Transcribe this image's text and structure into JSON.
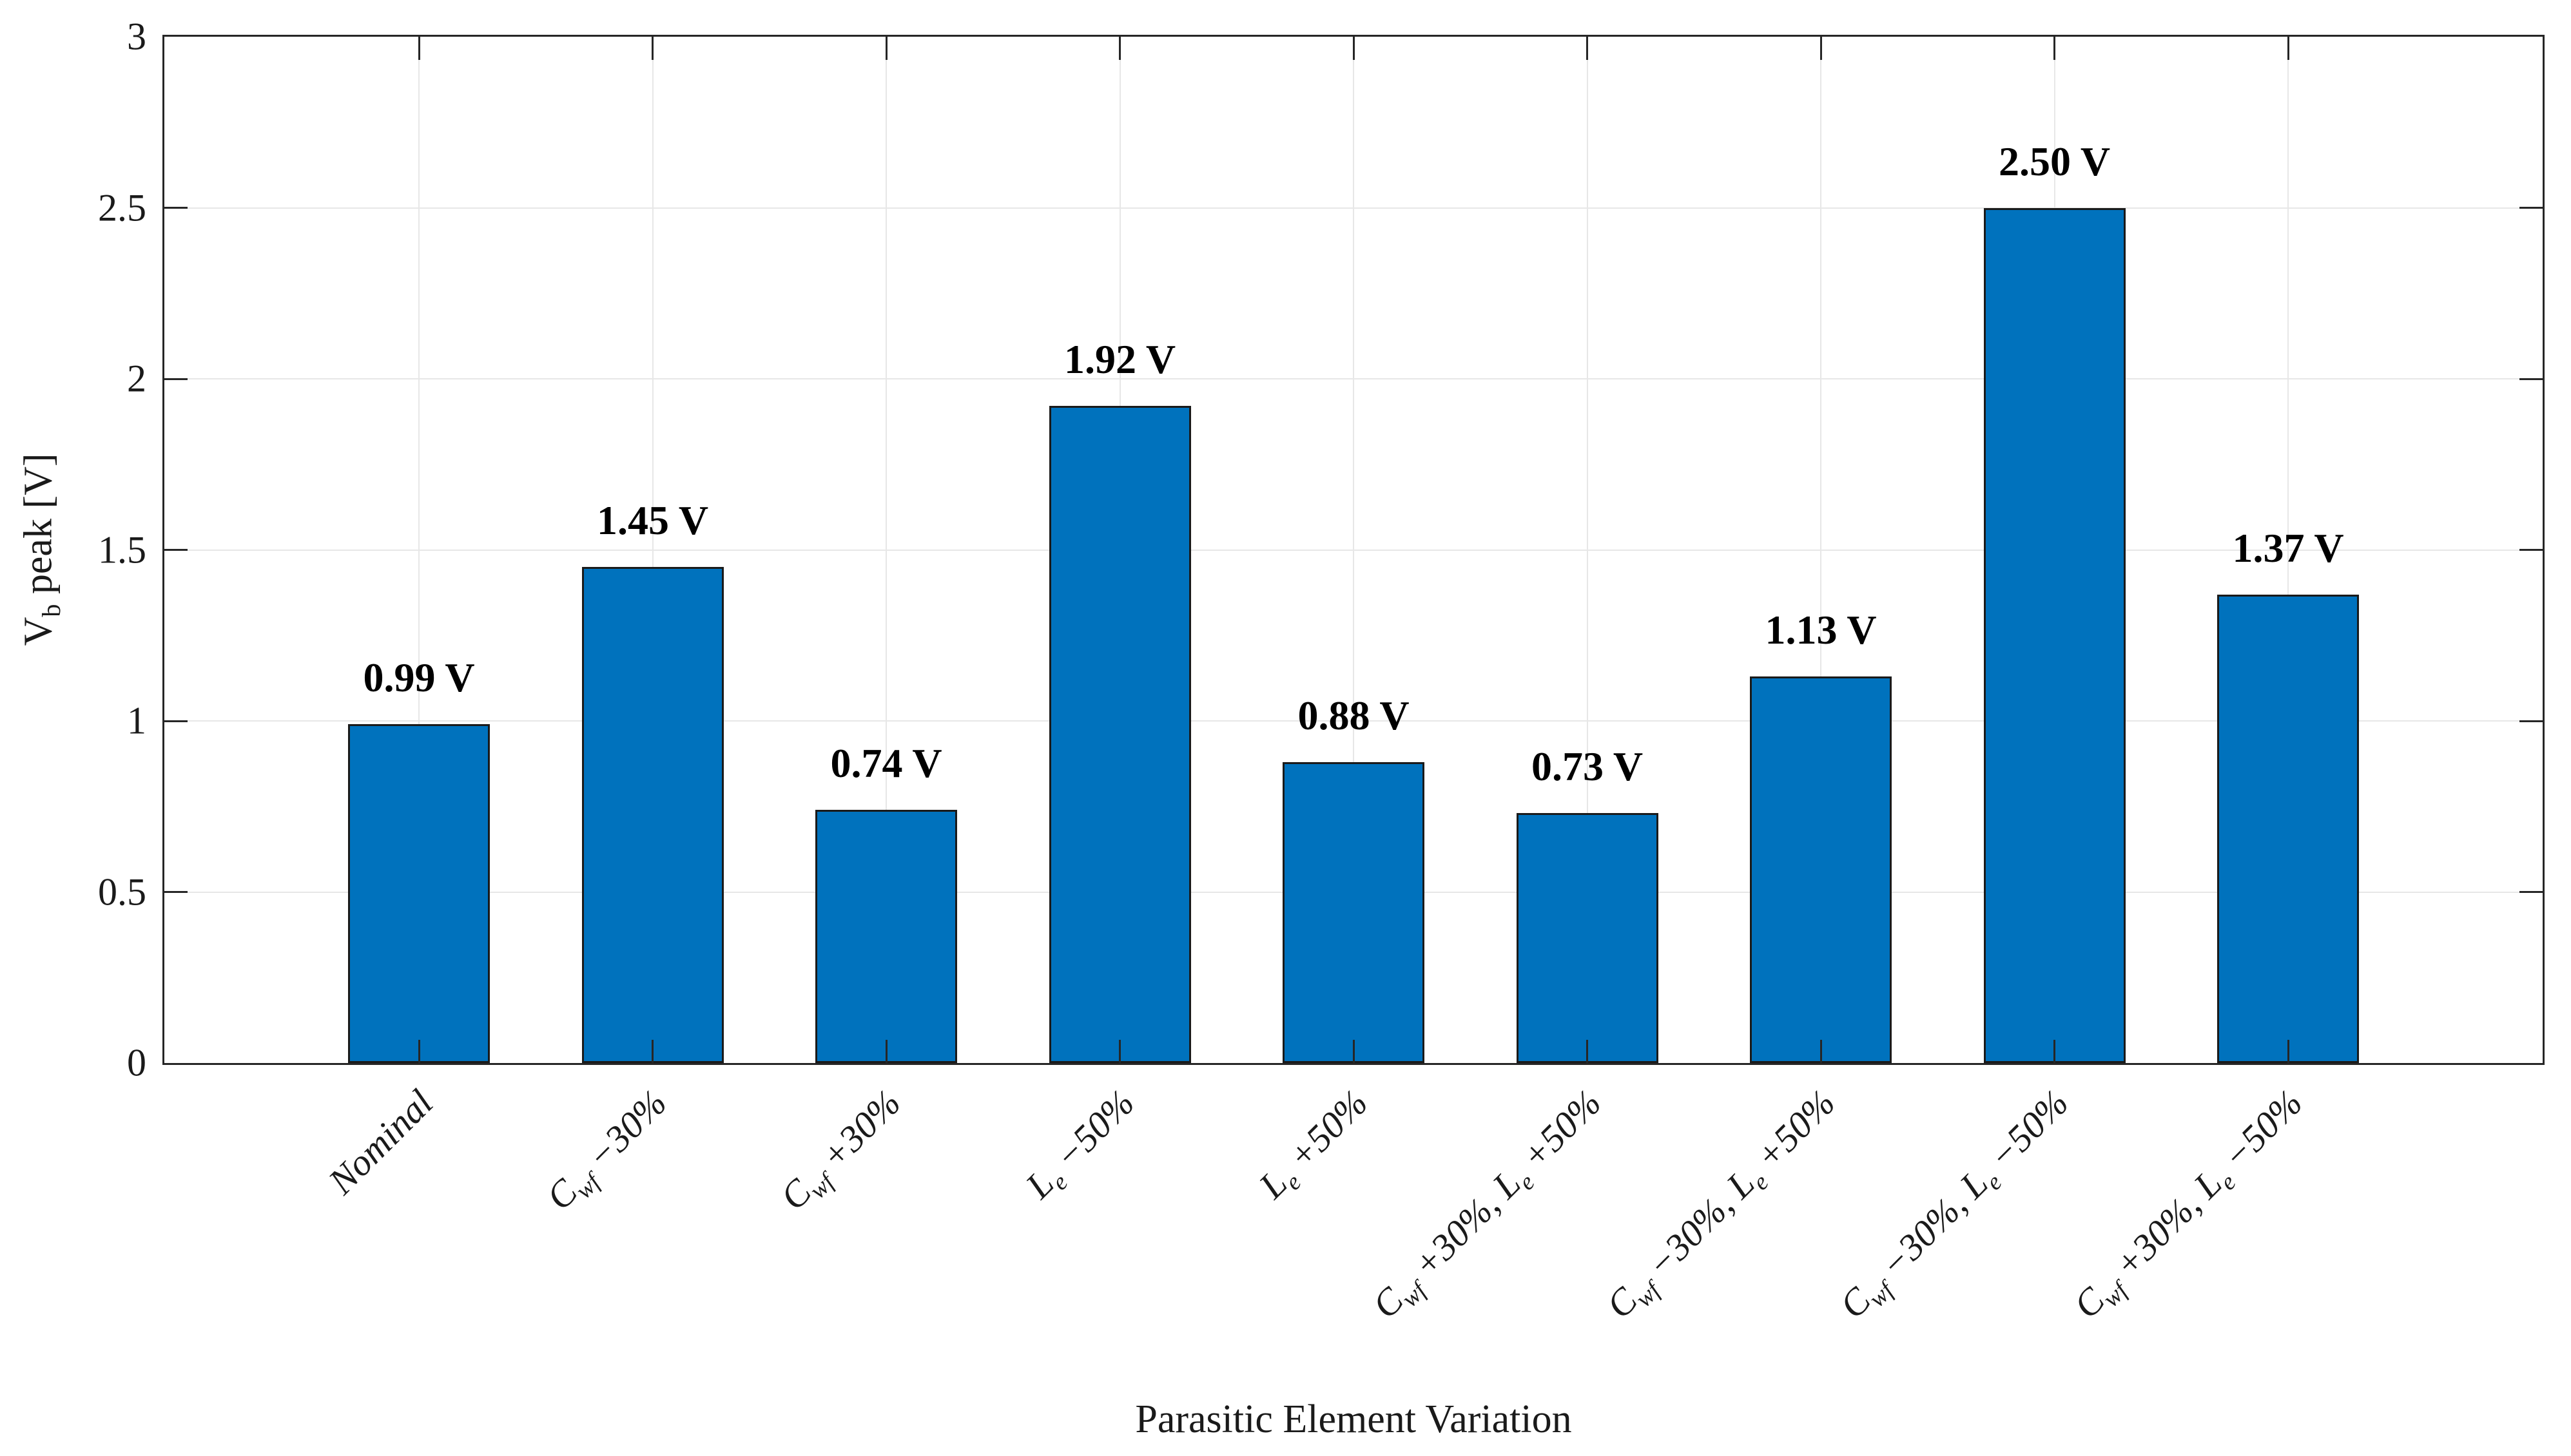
{
  "chart_data": {
    "type": "bar",
    "title": "",
    "xlabel": "Parasitic Element Variation",
    "ylabel": "V_b peak [V]",
    "ylabel_rich": [
      [
        "V",
        "b"
      ],
      [
        " peak [V]",
        ""
      ]
    ],
    "ylim": [
      0,
      3
    ],
    "ytick_values": [
      0,
      0.5,
      1,
      1.5,
      2,
      2.5,
      3
    ],
    "ytick_labels": [
      "0",
      "0.5",
      "1",
      "1.5",
      "2",
      "2.5",
      "3"
    ],
    "grid": true,
    "legend": null,
    "categories": [
      "Nominal",
      "Cwf −30%",
      "Cwf +30%",
      "Le −50%",
      "Le +50%",
      "Cwf +30%, Le +50%",
      "Cwf −30%, Le +50%",
      "Cwf −30%, Le −50%",
      "Cwf +30%, Le −50%"
    ],
    "categories_rich": [
      [
        [
          "Nominal",
          ""
        ]
      ],
      [
        [
          "C",
          "wf"
        ],
        [
          " −30%",
          ""
        ]
      ],
      [
        [
          "C",
          "wf"
        ],
        [
          " +30%",
          ""
        ]
      ],
      [
        [
          "L",
          "e"
        ],
        [
          " −50%",
          ""
        ]
      ],
      [
        [
          "L",
          "e"
        ],
        [
          " +50%",
          ""
        ]
      ],
      [
        [
          "C",
          "wf"
        ],
        [
          " +30%, L",
          "e"
        ],
        [
          " +50%",
          ""
        ]
      ],
      [
        [
          "C",
          "wf"
        ],
        [
          " −30%, L",
          "e"
        ],
        [
          " +50%",
          ""
        ]
      ],
      [
        [
          "C",
          "wf"
        ],
        [
          " −30%, L",
          "e"
        ],
        [
          " −50%",
          ""
        ]
      ],
      [
        [
          "C",
          "wf"
        ],
        [
          " +30%, L",
          "e"
        ],
        [
          " −50%",
          ""
        ]
      ]
    ],
    "values": [
      0.99,
      1.45,
      0.74,
      1.92,
      0.88,
      0.73,
      1.13,
      2.5,
      1.37
    ],
    "bar_labels": [
      "0.99 V",
      "1.45 V",
      "0.74 V",
      "1.92 V",
      "0.88 V",
      "0.73 V",
      "1.13 V",
      "2.50 V",
      "1.37 V"
    ],
    "colors": {
      "bar_fill": "#0072BD",
      "bar_edge": "#1a1a1a",
      "axis": "#262626",
      "grid": "#e7e7e7",
      "text": "#1a1a1a",
      "value_label": "#000000",
      "background": "#ffffff"
    }
  }
}
